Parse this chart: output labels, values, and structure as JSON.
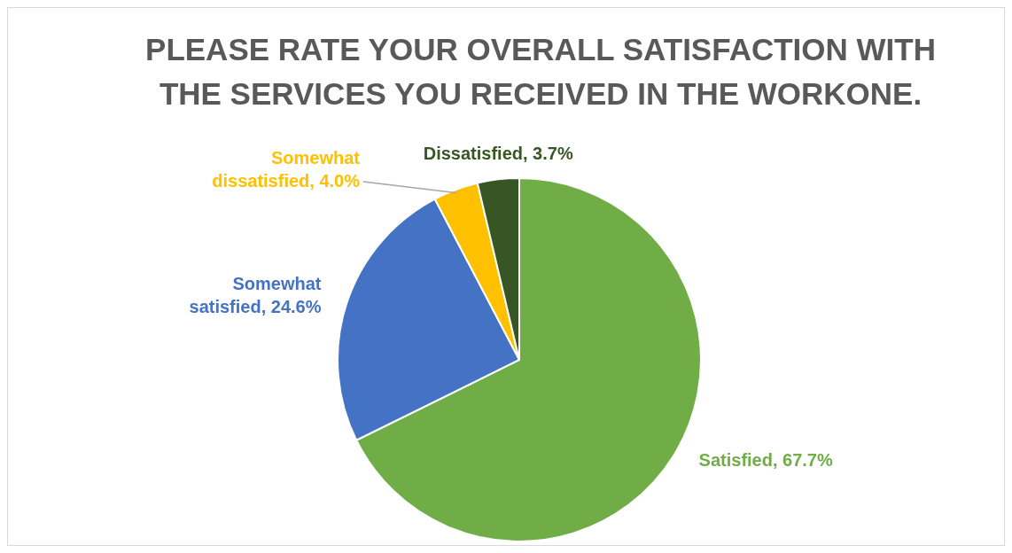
{
  "chart_data": {
    "type": "pie",
    "title": "PLEASE RATE YOUR OVERALL SATISFACTION WITH THE SERVICES YOU RECEIVED IN THE WORKONE.",
    "categories": [
      "Satisfied",
      "Somewhat satisfied",
      "Somewhat dissatisfied",
      "Dissatisfied"
    ],
    "values": [
      67.7,
      24.6,
      4.0,
      3.7
    ],
    "colors": [
      "#70ad47",
      "#4472c4",
      "#ffc000",
      "#375623"
    ],
    "value_labels": [
      ", 67.7%",
      ", 24.6%",
      ", 4.0%",
      ", 3.7%"
    ],
    "legend": false
  }
}
